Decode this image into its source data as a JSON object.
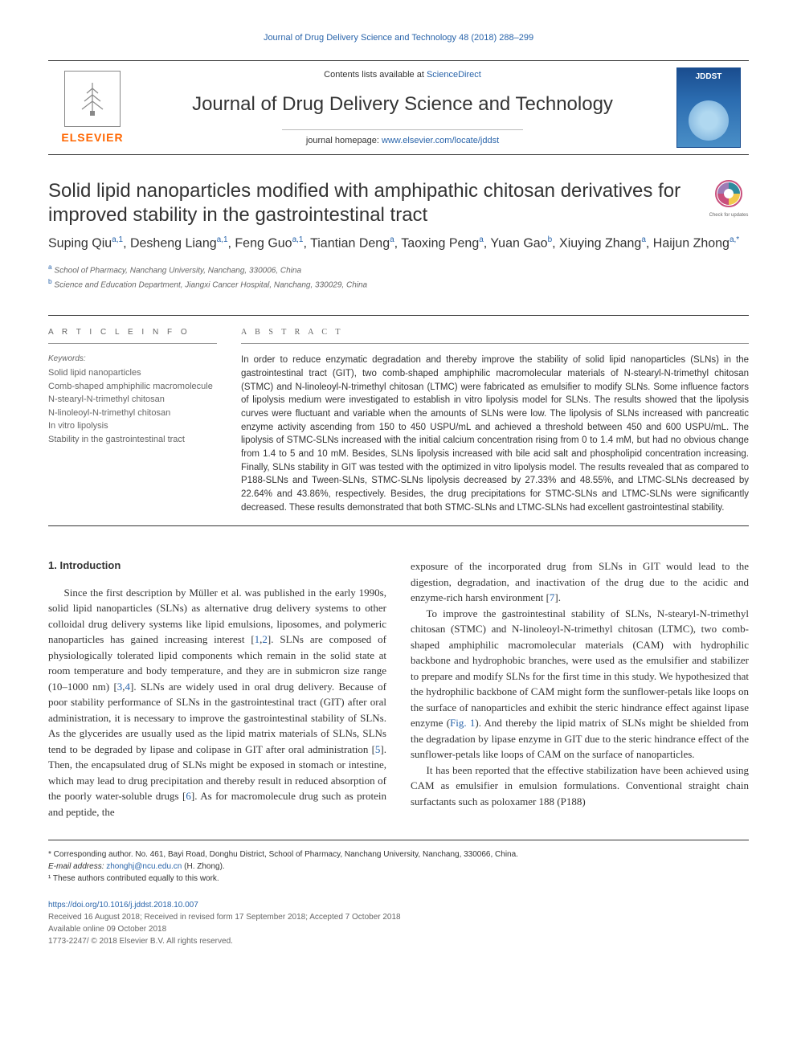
{
  "running_header": "Journal of Drug Delivery Science and Technology 48 (2018) 288–299",
  "masthead": {
    "contents_text": "Contents lists available at ",
    "contents_link": "ScienceDirect",
    "journal_name": "Journal of Drug Delivery Science and Technology",
    "homepage_text": "journal homepage: ",
    "homepage_link": "www.elsevier.com/locate/jddst",
    "elsevier": "ELSEVIER",
    "cover_label": "JDDST"
  },
  "article": {
    "title": "Solid lipid nanoparticles modified with amphipathic chitosan derivatives for improved stability in the gastrointestinal tract",
    "check_updates": "Check for updates",
    "authors_html": "Suping Qiu<sup>a,1</sup>, Desheng Liang<sup>a,1</sup>, Feng Guo<sup>a,1</sup>, Tiantian Deng<sup>a</sup>, Taoxing Peng<sup>a</sup>, Yuan Gao<sup>b</sup>, Xiuying Zhang<sup>a</sup>, Haijun Zhong<sup>a,*</sup>",
    "affiliations": [
      {
        "sup": "a",
        "text": "School of Pharmacy, Nanchang University, Nanchang, 330006, China"
      },
      {
        "sup": "b",
        "text": "Science and Education Department, Jiangxi Cancer Hospital, Nanchang, 330029, China"
      }
    ]
  },
  "info": {
    "label": "A R T I C L E  I N F O",
    "keywords_label": "Keywords:",
    "keywords": [
      "Solid lipid nanoparticles",
      "Comb-shaped amphiphilic macromolecule",
      "N-stearyl-N-trimethyl chitosan",
      "N-linoleoyl-N-trimethyl chitosan",
      "In vitro lipolysis",
      "Stability in the gastrointestinal tract"
    ]
  },
  "abstract": {
    "label": "A B S T R A C T",
    "text": "In order to reduce enzymatic degradation and thereby improve the stability of solid lipid nanoparticles (SLNs) in the gastrointestinal tract (GIT), two comb-shaped amphiphilic macromolecular materials of N-stearyl-N-trimethyl chitosan (STMC) and N-linoleoyl-N-trimethyl chitosan (LTMC) were fabricated as emulsifier to modify SLNs. Some influence factors of lipolysis medium were investigated to establish in vitro lipolysis model for SLNs. The results showed that the lipolysis curves were fluctuant and variable when the amounts of SLNs were low. The lipolysis of SLNs increased with pancreatic enzyme activity ascending from 150 to 450 USPU/mL and achieved a threshold between 450 and 600 USPU/mL. The lipolysis of STMC-SLNs increased with the initial calcium concentration rising from 0 to 1.4 mM, but had no obvious change from 1.4 to 5 and 10 mM. Besides, SLNs lipolysis increased with bile acid salt and phospholipid concentration increasing. Finally, SLNs stability in GIT was tested with the optimized in vitro lipolysis model. The results revealed that as compared to P188-SLNs and Tween-SLNs, STMC-SLNs lipolysis decreased by 27.33% and 48.55%, and LTMC-SLNs decreased by 22.64% and 43.86%, respectively. Besides, the drug precipitations for STMC-SLNs and LTMC-SLNs were significantly decreased. These results demonstrated that both STMC-SLNs and LTMC-SLNs had excellent gastrointestinal stability."
  },
  "body": {
    "heading": "1. Introduction",
    "left_paragraphs": [
      "Since the first description by Müller et al. was published in the early 1990s, solid lipid nanoparticles (SLNs) as alternative drug delivery systems to other colloidal drug delivery systems like lipid emulsions, liposomes, and polymeric nanoparticles has gained increasing interest [<span class=\"cite\">1</span>,<span class=\"cite\">2</span>]. SLNs are composed of physiologically tolerated lipid components which remain in the solid state at room temperature and body temperature, and they are in submicron size range (10–1000 nm) [<span class=\"cite\">3</span>,<span class=\"cite\">4</span>]. SLNs are widely used in oral drug delivery. Because of poor stability performance of SLNs in the gastrointestinal tract (GIT) after oral administration, it is necessary to improve the gastrointestinal stability of SLNs. As the glycerides are usually used as the lipid matrix materials of SLNs, SLNs tend to be degraded by lipase and colipase in GIT after oral administration [<span class=\"cite\">5</span>]. Then, the encapsulated drug of SLNs might be exposed in stomach or intestine, which may lead to drug precipitation and thereby result in reduced absorption of the poorly water-soluble drugs [<span class=\"cite\">6</span>]. As for macromolecule drug such as protein and peptide, the"
    ],
    "right_paragraphs": [
      "exposure of the incorporated drug from SLNs in GIT would lead to the digestion, degradation, and inactivation of the drug due to the acidic and enzyme-rich harsh environment [<span class=\"cite\">7</span>].",
      "To improve the gastrointestinal stability of SLNs, N-stearyl-N-trimethyl chitosan (STMC) and N-linoleoyl-N-trimethyl chitosan (LTMC), two comb-shaped amphiphilic macromolecular materials (CAM) with hydrophilic backbone and hydrophobic branches, were used as the emulsifier and stabilizer to prepare and modify SLNs for the first time in this study. We hypothesized that the hydrophilic backbone of CAM might form the sunflower-petals like loops on the surface of nanoparticles and exhibit the steric hindrance effect against lipase enzyme (<span class=\"cite\">Fig. 1</span>). And thereby the lipid matrix of SLNs might be shielded from the degradation by lipase enzyme in GIT due to the steric hindrance effect of the sunflower-petals like loops of CAM on the surface of nanoparticles.",
      "It has been reported that the effective stabilization have been achieved using CAM as emulsifier in emulsion formulations. Conventional straight chain surfactants such as poloxamer 188 (P188)"
    ]
  },
  "footnotes": {
    "corr": "* Corresponding author. No. 461, Bayi Road, Donghu District, School of Pharmacy, Nanchang University, Nanchang, 330066, China.",
    "email_label": "E-mail address: ",
    "email": "zhonghj@ncu.edu.cn",
    "email_suffix": " (H. Zhong).",
    "equal": "¹ These authors contributed equally to this work."
  },
  "pub": {
    "doi": "https://doi.org/10.1016/j.jddst.2018.10.007",
    "received": "Received 16 August 2018; Received in revised form 17 September 2018; Accepted 7 October 2018",
    "online": "Available online 09 October 2018",
    "copyright": "1773-2247/ © 2018 Elsevier B.V. All rights reserved."
  },
  "colors": {
    "link": "#2964aa",
    "elsevier_orange": "#ff6600",
    "text": "#333333",
    "muted": "#666666"
  }
}
